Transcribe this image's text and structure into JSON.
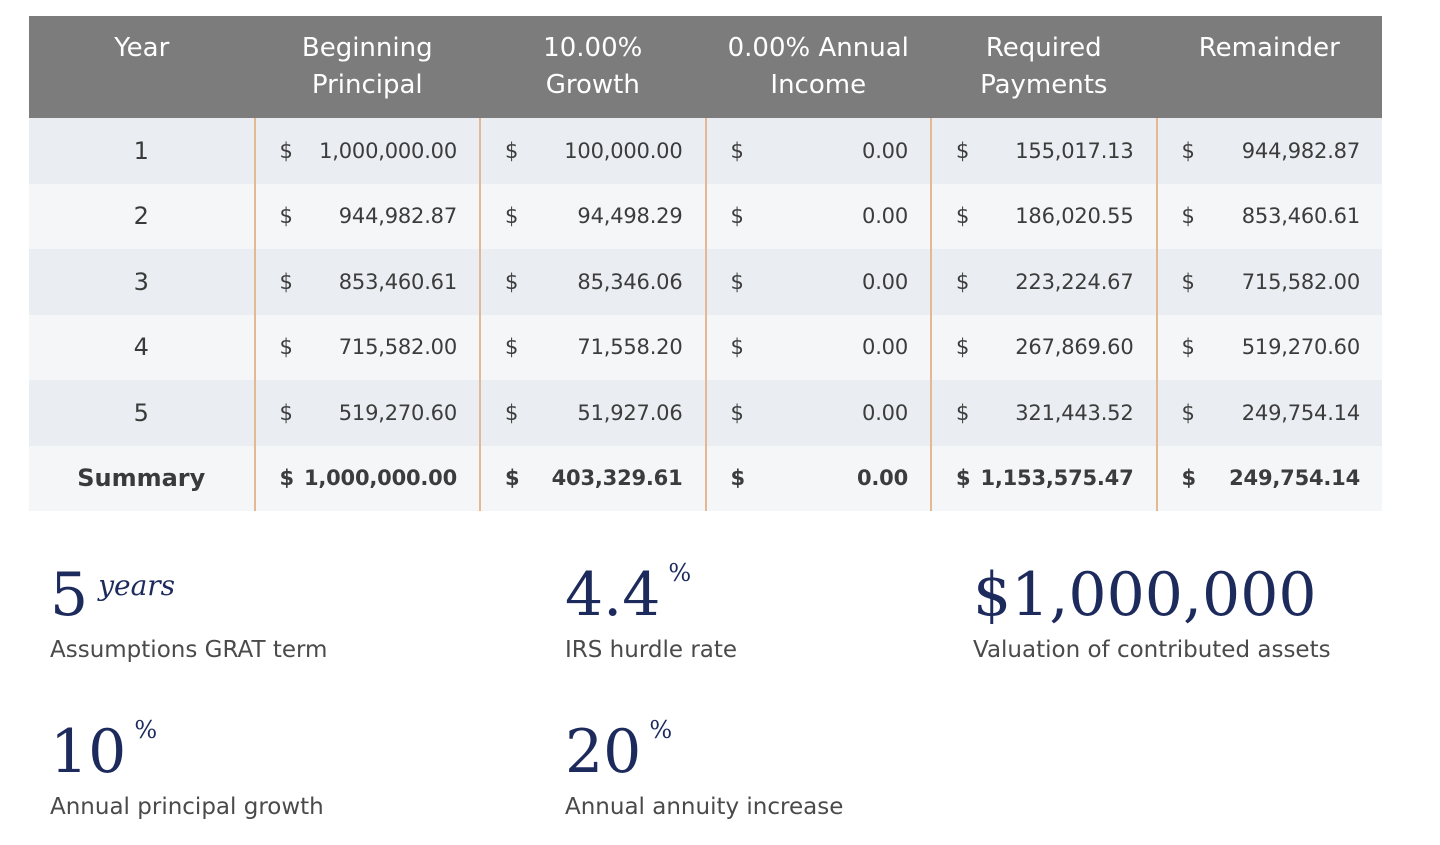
{
  "table": {
    "headers": [
      [
        "Year"
      ],
      [
        "Beginning",
        "Principal"
      ],
      [
        "10.00%",
        "Growth"
      ],
      [
        "0.00% Annual",
        "Income"
      ],
      [
        "Required",
        "Payments"
      ],
      [
        "Remainder"
      ]
    ],
    "currency_symbol": "$",
    "rows": [
      {
        "year": "1",
        "beginning_principal": "1,000,000.00",
        "growth": "100,000.00",
        "annual_income": "0.00",
        "required_payments": "155,017.13",
        "remainder": "944,982.87"
      },
      {
        "year": "2",
        "beginning_principal": "944,982.87",
        "growth": "94,498.29",
        "annual_income": "0.00",
        "required_payments": "186,020.55",
        "remainder": "853,460.61"
      },
      {
        "year": "3",
        "beginning_principal": "853,460.61",
        "growth": "85,346.06",
        "annual_income": "0.00",
        "required_payments": "223,224.67",
        "remainder": "715,582.00"
      },
      {
        "year": "4",
        "beginning_principal": "715,582.00",
        "growth": "71,558.20",
        "annual_income": "0.00",
        "required_payments": "267,869.60",
        "remainder": "519,270.60"
      },
      {
        "year": "5",
        "beginning_principal": "519,270.60",
        "growth": "51,927.06",
        "annual_income": "0.00",
        "required_payments": "321,443.52",
        "remainder": "249,754.14"
      }
    ],
    "summary": {
      "year": "Summary",
      "beginning_principal": "1,000,000.00",
      "growth": "403,329.61",
      "annual_income": "0.00",
      "required_payments": "1,153,575.47",
      "remainder": "249,754.14"
    }
  },
  "metrics": {
    "term": {
      "value": "5",
      "suffix": "years",
      "label": "Assumptions GRAT term"
    },
    "hurdle": {
      "value": "4.4",
      "suffix": "%",
      "label": "IRS hurdle rate"
    },
    "valuation": {
      "value": "$1,000,000",
      "label": "Valuation of contributed assets"
    },
    "growth": {
      "value": "10",
      "suffix": "%",
      "label": "Annual principal growth"
    },
    "annuity": {
      "value": "20",
      "suffix": "%",
      "label": "Annual annuity increase"
    }
  },
  "colors": {
    "header_bg": "#7c7c7c",
    "row_odd": "#eaedf1",
    "row_even": "#f5f6f8",
    "column_divider": "#e3b893",
    "metric_navy": "#1d2a5c"
  }
}
